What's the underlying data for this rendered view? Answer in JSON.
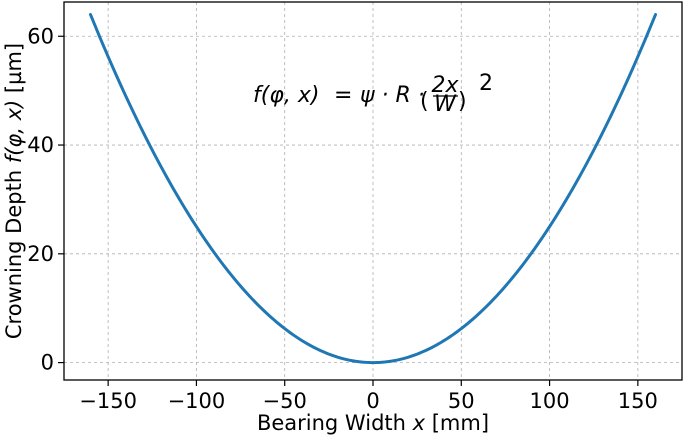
{
  "chart_data": {
    "type": "line",
    "title": "",
    "xlabel": "Bearing Width x [mm]",
    "xlabel_parts": {
      "pre": "Bearing Width ",
      "var": "x",
      "post": " [mm]"
    },
    "ylabel": "Crowning Depth f(φ, x) [µm]",
    "ylabel_parts": {
      "pre": "Crowning Depth ",
      "var": "f(φ, x)",
      "post": " [µm]"
    },
    "annotation": {
      "text": "f(φ,x) = ψ · R · (2x/W)^2",
      "lhs": "f(φ, x)",
      "equals": "=",
      "coef": "ψ · R ·",
      "frac_num": "2x",
      "frac_den": "W",
      "exponent": "2"
    },
    "xlim": [
      -175,
      175
    ],
    "ylim": [
      -3.2,
      66.3
    ],
    "xticks": [
      -150,
      -100,
      -50,
      0,
      50,
      100,
      150
    ],
    "xtick_labels": [
      "−150",
      "−100",
      "−50",
      "0",
      "50",
      "100",
      "150"
    ],
    "yticks": [
      0,
      20,
      40,
      60
    ],
    "ytick_labels": [
      "0",
      "20",
      "40",
      "60"
    ],
    "grid": true,
    "series": [
      {
        "color": "#1f77b4",
        "x": [
          -160,
          -150,
          -140,
          -130,
          -120,
          -110,
          -100,
          -90,
          -80,
          -70,
          -60,
          -50,
          -40,
          -30,
          -20,
          -10,
          0,
          10,
          20,
          30,
          40,
          50,
          60,
          70,
          80,
          90,
          100,
          110,
          120,
          130,
          140,
          150,
          160
        ],
        "y": [
          64,
          56.25,
          49,
          42.25,
          36,
          30.25,
          25,
          20.25,
          16,
          12.25,
          9,
          6.25,
          4,
          2.25,
          1,
          0.25,
          0,
          0.25,
          1,
          2.25,
          4,
          6.25,
          9,
          12.25,
          16,
          20.25,
          25,
          30.25,
          36,
          42.25,
          49,
          56.25,
          64
        ]
      }
    ]
  }
}
